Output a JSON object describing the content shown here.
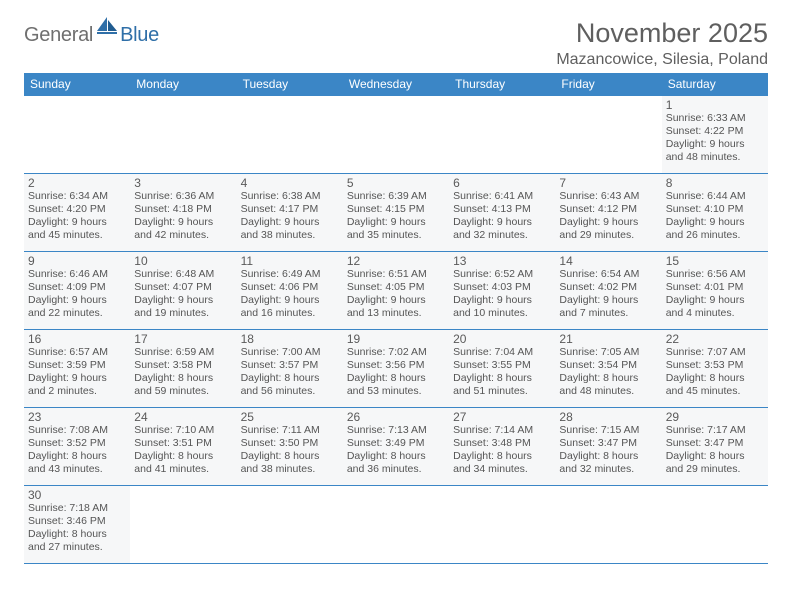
{
  "brand": {
    "general": "General",
    "blue": "Blue"
  },
  "title": "November 2025",
  "location": "Mazancowice, Silesia, Poland",
  "colors": {
    "header_bg": "#3b86c6",
    "header_text": "#ffffff",
    "cell_bg": "#f6f7f8",
    "border": "#3b86c6",
    "title_color": "#5f5f5f",
    "logo_gray": "#6f6f6f",
    "logo_blue": "#2f6fa8"
  },
  "day_headers": [
    "Sunday",
    "Monday",
    "Tuesday",
    "Wednesday",
    "Thursday",
    "Friday",
    "Saturday"
  ],
  "weeks": [
    [
      null,
      null,
      null,
      null,
      null,
      null,
      {
        "n": "1",
        "sr": "Sunrise: 6:33 AM",
        "ss": "Sunset: 4:22 PM",
        "dl": "Daylight: 9 hours and 48 minutes."
      }
    ],
    [
      {
        "n": "2",
        "sr": "Sunrise: 6:34 AM",
        "ss": "Sunset: 4:20 PM",
        "dl": "Daylight: 9 hours and 45 minutes."
      },
      {
        "n": "3",
        "sr": "Sunrise: 6:36 AM",
        "ss": "Sunset: 4:18 PM",
        "dl": "Daylight: 9 hours and 42 minutes."
      },
      {
        "n": "4",
        "sr": "Sunrise: 6:38 AM",
        "ss": "Sunset: 4:17 PM",
        "dl": "Daylight: 9 hours and 38 minutes."
      },
      {
        "n": "5",
        "sr": "Sunrise: 6:39 AM",
        "ss": "Sunset: 4:15 PM",
        "dl": "Daylight: 9 hours and 35 minutes."
      },
      {
        "n": "6",
        "sr": "Sunrise: 6:41 AM",
        "ss": "Sunset: 4:13 PM",
        "dl": "Daylight: 9 hours and 32 minutes."
      },
      {
        "n": "7",
        "sr": "Sunrise: 6:43 AM",
        "ss": "Sunset: 4:12 PM",
        "dl": "Daylight: 9 hours and 29 minutes."
      },
      {
        "n": "8",
        "sr": "Sunrise: 6:44 AM",
        "ss": "Sunset: 4:10 PM",
        "dl": "Daylight: 9 hours and 26 minutes."
      }
    ],
    [
      {
        "n": "9",
        "sr": "Sunrise: 6:46 AM",
        "ss": "Sunset: 4:09 PM",
        "dl": "Daylight: 9 hours and 22 minutes."
      },
      {
        "n": "10",
        "sr": "Sunrise: 6:48 AM",
        "ss": "Sunset: 4:07 PM",
        "dl": "Daylight: 9 hours and 19 minutes."
      },
      {
        "n": "11",
        "sr": "Sunrise: 6:49 AM",
        "ss": "Sunset: 4:06 PM",
        "dl": "Daylight: 9 hours and 16 minutes."
      },
      {
        "n": "12",
        "sr": "Sunrise: 6:51 AM",
        "ss": "Sunset: 4:05 PM",
        "dl": "Daylight: 9 hours and 13 minutes."
      },
      {
        "n": "13",
        "sr": "Sunrise: 6:52 AM",
        "ss": "Sunset: 4:03 PM",
        "dl": "Daylight: 9 hours and 10 minutes."
      },
      {
        "n": "14",
        "sr": "Sunrise: 6:54 AM",
        "ss": "Sunset: 4:02 PM",
        "dl": "Daylight: 9 hours and 7 minutes."
      },
      {
        "n": "15",
        "sr": "Sunrise: 6:56 AM",
        "ss": "Sunset: 4:01 PM",
        "dl": "Daylight: 9 hours and 4 minutes."
      }
    ],
    [
      {
        "n": "16",
        "sr": "Sunrise: 6:57 AM",
        "ss": "Sunset: 3:59 PM",
        "dl": "Daylight: 9 hours and 2 minutes."
      },
      {
        "n": "17",
        "sr": "Sunrise: 6:59 AM",
        "ss": "Sunset: 3:58 PM",
        "dl": "Daylight: 8 hours and 59 minutes."
      },
      {
        "n": "18",
        "sr": "Sunrise: 7:00 AM",
        "ss": "Sunset: 3:57 PM",
        "dl": "Daylight: 8 hours and 56 minutes."
      },
      {
        "n": "19",
        "sr": "Sunrise: 7:02 AM",
        "ss": "Sunset: 3:56 PM",
        "dl": "Daylight: 8 hours and 53 minutes."
      },
      {
        "n": "20",
        "sr": "Sunrise: 7:04 AM",
        "ss": "Sunset: 3:55 PM",
        "dl": "Daylight: 8 hours and 51 minutes."
      },
      {
        "n": "21",
        "sr": "Sunrise: 7:05 AM",
        "ss": "Sunset: 3:54 PM",
        "dl": "Daylight: 8 hours and 48 minutes."
      },
      {
        "n": "22",
        "sr": "Sunrise: 7:07 AM",
        "ss": "Sunset: 3:53 PM",
        "dl": "Daylight: 8 hours and 45 minutes."
      }
    ],
    [
      {
        "n": "23",
        "sr": "Sunrise: 7:08 AM",
        "ss": "Sunset: 3:52 PM",
        "dl": "Daylight: 8 hours and 43 minutes."
      },
      {
        "n": "24",
        "sr": "Sunrise: 7:10 AM",
        "ss": "Sunset: 3:51 PM",
        "dl": "Daylight: 8 hours and 41 minutes."
      },
      {
        "n": "25",
        "sr": "Sunrise: 7:11 AM",
        "ss": "Sunset: 3:50 PM",
        "dl": "Daylight: 8 hours and 38 minutes."
      },
      {
        "n": "26",
        "sr": "Sunrise: 7:13 AM",
        "ss": "Sunset: 3:49 PM",
        "dl": "Daylight: 8 hours and 36 minutes."
      },
      {
        "n": "27",
        "sr": "Sunrise: 7:14 AM",
        "ss": "Sunset: 3:48 PM",
        "dl": "Daylight: 8 hours and 34 minutes."
      },
      {
        "n": "28",
        "sr": "Sunrise: 7:15 AM",
        "ss": "Sunset: 3:47 PM",
        "dl": "Daylight: 8 hours and 32 minutes."
      },
      {
        "n": "29",
        "sr": "Sunrise: 7:17 AM",
        "ss": "Sunset: 3:47 PM",
        "dl": "Daylight: 8 hours and 29 minutes."
      }
    ],
    [
      {
        "n": "30",
        "sr": "Sunrise: 7:18 AM",
        "ss": "Sunset: 3:46 PM",
        "dl": "Daylight: 8 hours and 27 minutes."
      },
      null,
      null,
      null,
      null,
      null,
      null
    ]
  ]
}
